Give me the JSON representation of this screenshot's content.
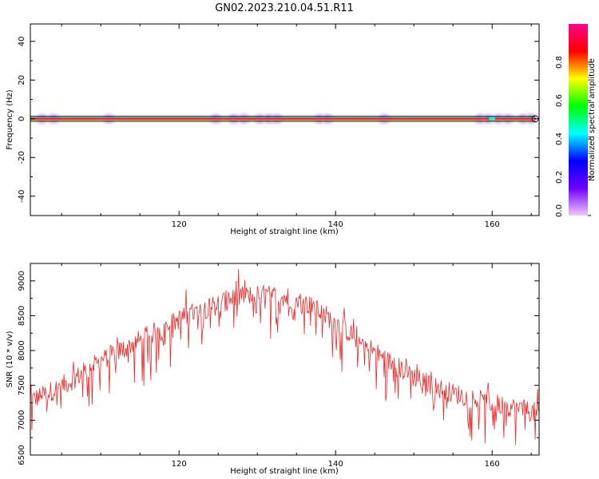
{
  "title": "GN02.2023.210.04.51.R11",
  "chart_data": [
    {
      "type": "heatmap",
      "xlabel": "Height of straight line (km)",
      "ylabel": "Frequency (Hz)",
      "xlim": [
        101,
        166
      ],
      "ylim": [
        -50,
        49
      ],
      "xticks": [
        120,
        140,
        160
      ],
      "yticks": [
        -40,
        -20,
        0,
        20,
        40
      ],
      "band_frequency": 0,
      "band_x_range": [
        101,
        165.5
      ],
      "halo_positions": [
        102.5,
        104,
        111,
        124.7,
        127,
        128.3,
        130.3,
        131.5,
        132.5,
        138,
        139,
        146.2,
        158.5,
        159.5,
        160.8,
        162,
        164,
        165
      ],
      "grid": false,
      "colorbar": {
        "label": "Normalized spectral amplitude",
        "range": [
          0,
          1
        ],
        "ticks": [
          "0.0",
          "0.2",
          "0.4",
          "0.6",
          "0.8"
        ],
        "tick_values": [
          0,
          0.2,
          0.4,
          0.6,
          0.8
        ],
        "colors": [
          "#f0c8ff",
          "#6e00ff",
          "#0000ff",
          "#00ffff",
          "#00ff00",
          "#ffff00",
          "#ff0000",
          "#ff0090"
        ]
      }
    },
    {
      "type": "line",
      "xlabel": "Height of straight line (km)",
      "ylabel": "SNR (10 * v/v)",
      "xlim": [
        101,
        166
      ],
      "ylim": [
        6500,
        9250
      ],
      "xticks": [
        120,
        140,
        160
      ],
      "yticks": [
        6500,
        7000,
        7500,
        8000,
        8500,
        9000
      ],
      "series_color": "#ef2a2a",
      "trend_x": [
        101,
        103,
        106,
        110,
        115,
        120,
        125,
        128,
        131,
        134,
        137,
        140,
        143,
        146,
        150,
        154,
        158,
        162,
        166
      ],
      "trend_y": [
        7280,
        7380,
        7550,
        7850,
        8150,
        8450,
        8680,
        8780,
        8800,
        8760,
        8640,
        8400,
        8150,
        7900,
        7620,
        7420,
        7300,
        7200,
        7100
      ],
      "x_step": 0.1,
      "noise_amplitude": 150,
      "spike_amplitude": 550,
      "grid": false
    }
  ]
}
